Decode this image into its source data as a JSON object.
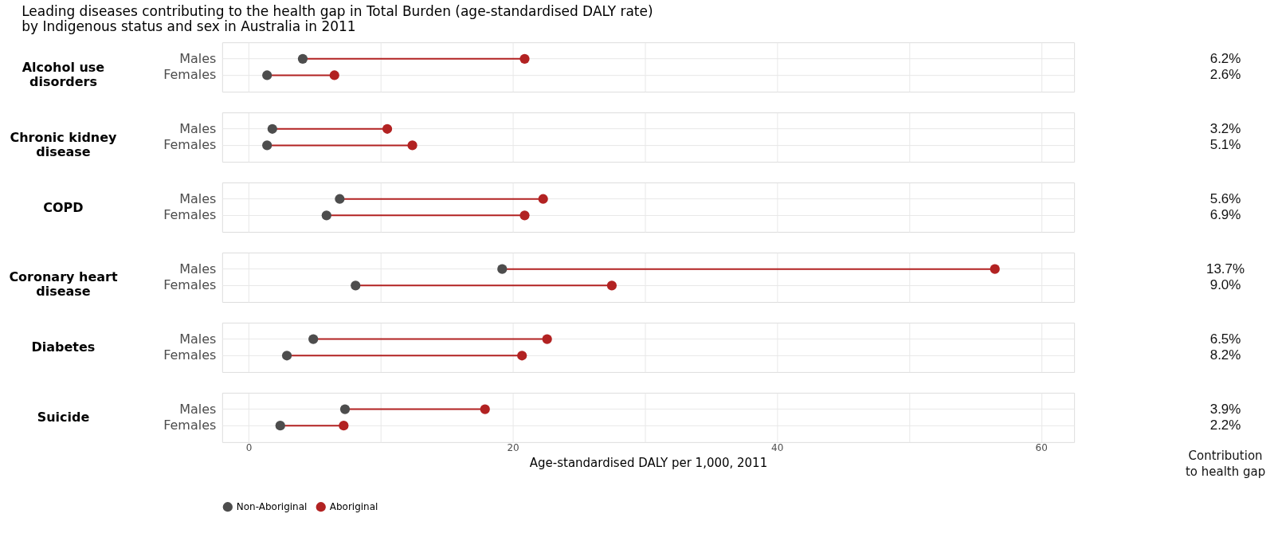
{
  "chart_data": [
    {
      "type": "scatter",
      "title": "Leading diseases contributing to the health gap in Total Burden (age-standardised DALY rate) by Indigenous status and sex in Australia in 2011",
      "ylabel": "Alcohol use disorders",
      "categories": [
        "Males",
        "Females"
      ],
      "orientation": "horizontal",
      "xlim": [
        -2,
        62.5
      ],
      "xticks": [
        0,
        {
          "value": 10,
          "label": null
        },
        20,
        {
          "value": 30,
          "label": null
        },
        40,
        {
          "value": 50,
          "label": null
        },
        60
      ],
      "tick_labels": "y",
      "grid": true,
      "marker": "circle",
      "legend": false,
      "series": [
        {
          "color": "#4d4d4d",
          "values": [
            4.1,
            1.4
          ]
        },
        {
          "color": "#b22222",
          "values": [
            20.9,
            6.5
          ]
        }
      ],
      "annotations": [
        "6.2%",
        "2.6%"
      ]
    },
    {
      "type": "scatter",
      "ylabel": "Chronic kidney disease",
      "categories": [
        "Males",
        "Females"
      ],
      "orientation": "horizontal",
      "xlim": [
        -2,
        62.5
      ],
      "xticks": [
        0,
        {
          "value": 10,
          "label": null
        },
        20,
        {
          "value": 30,
          "label": null
        },
        40,
        {
          "value": 50,
          "label": null
        },
        60
      ],
      "tick_labels": "y",
      "grid": true,
      "marker": "circle",
      "legend": false,
      "series": [
        {
          "color": "#4d4d4d",
          "values": [
            1.8,
            1.4
          ]
        },
        {
          "color": "#b22222",
          "values": [
            10.5,
            12.4
          ]
        }
      ],
      "annotations": [
        "3.2%",
        "5.1%"
      ]
    },
    {
      "type": "scatter",
      "ylabel": "COPD",
      "categories": [
        "Males",
        "Females"
      ],
      "orientation": "horizontal",
      "xlim": [
        -2,
        62.5
      ],
      "xticks": [
        0,
        {
          "value": 10,
          "label": null
        },
        20,
        {
          "value": 30,
          "label": null
        },
        40,
        {
          "value": 50,
          "label": null
        },
        60
      ],
      "tick_labels": "y",
      "grid": true,
      "marker": "circle",
      "legend": false,
      "series": [
        {
          "color": "#4d4d4d",
          "values": [
            6.9,
            5.9
          ]
        },
        {
          "color": "#b22222",
          "values": [
            22.3,
            20.9
          ]
        }
      ],
      "annotations": [
        "5.6%",
        "6.9%"
      ]
    },
    {
      "type": "scatter",
      "ylabel": "Coronary heart disease",
      "categories": [
        "Males",
        "Females"
      ],
      "orientation": "horizontal",
      "xlim": [
        -2,
        62.5
      ],
      "xticks": [
        0,
        {
          "value": 10,
          "label": null
        },
        20,
        {
          "value": 30,
          "label": null
        },
        40,
        {
          "value": 50,
          "label": null
        },
        60
      ],
      "tick_labels": "y",
      "grid": true,
      "marker": "circle",
      "legend": false,
      "series": [
        {
          "color": "#4d4d4d",
          "values": [
            19.2,
            8.1
          ]
        },
        {
          "color": "#b22222",
          "values": [
            56.5,
            27.5
          ]
        }
      ],
      "annotations": [
        "13.7%",
        "9.0%"
      ]
    },
    {
      "type": "scatter",
      "ylabel": "Diabetes",
      "categories": [
        "Males",
        "Females"
      ],
      "orientation": "horizontal",
      "xlim": [
        -2,
        62.5
      ],
      "xticks": [
        0,
        {
          "value": 10,
          "label": null
        },
        20,
        {
          "value": 30,
          "label": null
        },
        40,
        {
          "value": 50,
          "label": null
        },
        60
      ],
      "tick_labels": "y",
      "grid": true,
      "marker": "circle",
      "legend": false,
      "series": [
        {
          "color": "#4d4d4d",
          "values": [
            4.9,
            2.9
          ]
        },
        {
          "color": "#b22222",
          "values": [
            22.6,
            20.7
          ]
        }
      ],
      "annotations": [
        "6.5%",
        "8.2%"
      ]
    },
    {
      "type": "scatter",
      "ylabel": "Suicide",
      "xlabel": "Age-standardised DALY per 1,000, 2011",
      "categories": [
        "Males",
        "Females"
      ],
      "orientation": "horizontal",
      "xlim": [
        -2,
        62.5
      ],
      "xticks": [
        0,
        {
          "value": 10,
          "label": null
        },
        20,
        {
          "value": 30,
          "label": null
        },
        40,
        {
          "value": 50,
          "label": null
        },
        60
      ],
      "grid": true,
      "marker": "circle",
      "legend": "bottom",
      "series": [
        {
          "name": "Non-Aboriginal",
          "color": "#4d4d4d",
          "values": [
            7.3,
            2.4
          ]
        },
        {
          "name": "Aboriginal",
          "color": "#b22222",
          "values": [
            17.9,
            7.2
          ]
        }
      ],
      "annotations": [
        "3.9%",
        "2.2%",
        "Contribution to health gap"
      ]
    }
  ]
}
